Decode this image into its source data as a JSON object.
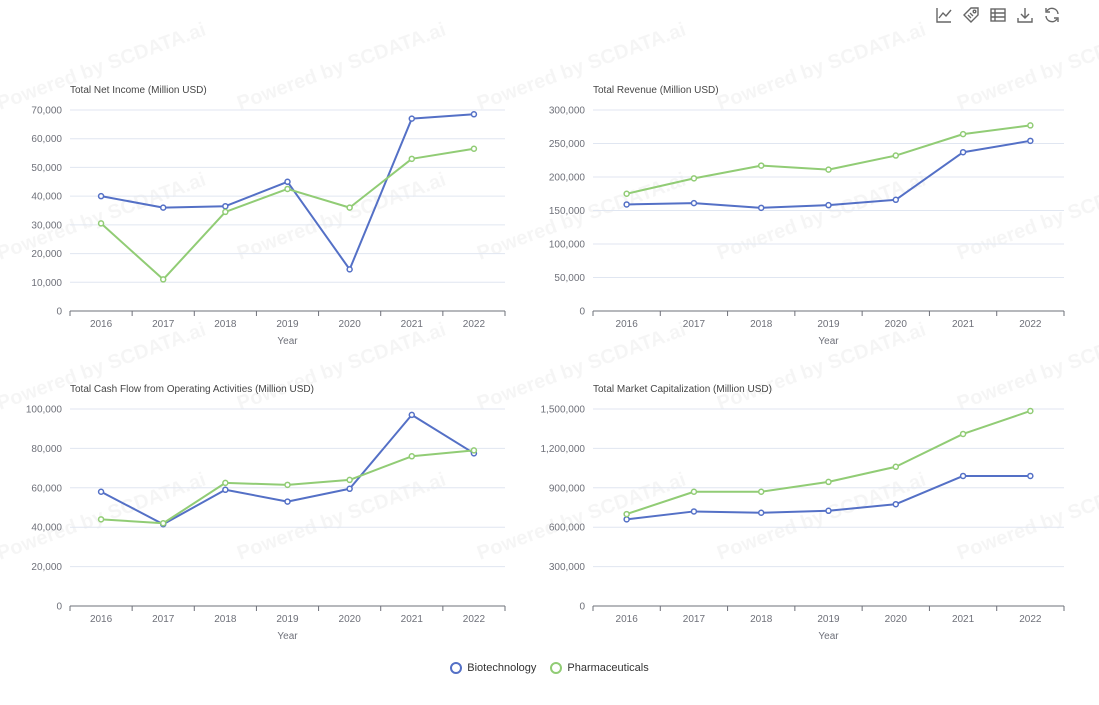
{
  "watermark_text": "Powered by SCDATA.ai",
  "toolbar": [
    {
      "name": "line-chart-icon"
    },
    {
      "name": "tag-icon"
    },
    {
      "name": "data-view-icon"
    },
    {
      "name": "download-icon"
    },
    {
      "name": "refresh-icon"
    }
  ],
  "legend": [
    {
      "name": "Biotechnology",
      "color": "#5470c6"
    },
    {
      "name": "Pharmaceuticals",
      "color": "#91cc75"
    }
  ],
  "chart_data": [
    {
      "type": "line",
      "title": "Total Net Income (Million USD)",
      "xlabel": "Year",
      "ylabel": "",
      "categories": [
        "2016",
        "2017",
        "2018",
        "2019",
        "2020",
        "2021",
        "2022"
      ],
      "ylim": [
        0,
        70000
      ],
      "yticks": [
        "0",
        "10,000",
        "20,000",
        "30,000",
        "40,000",
        "50,000",
        "60,000",
        "70,000"
      ],
      "grid": true,
      "series": [
        {
          "name": "Biotechnology",
          "color": "#5470c6",
          "values": [
            40000,
            36000,
            36500,
            45000,
            14500,
            67000,
            68500
          ]
        },
        {
          "name": "Pharmaceuticals",
          "color": "#91cc75",
          "values": [
            30500,
            11000,
            34500,
            42500,
            36000,
            53000,
            56500
          ]
        }
      ]
    },
    {
      "type": "line",
      "title": "Total Revenue (Million USD)",
      "xlabel": "Year",
      "ylabel": "",
      "categories": [
        "2016",
        "2017",
        "2018",
        "2019",
        "2020",
        "2021",
        "2022"
      ],
      "ylim": [
        0,
        300000
      ],
      "yticks": [
        "0",
        "50,000",
        "100,000",
        "150,000",
        "200,000",
        "250,000",
        "300,000"
      ],
      "grid": true,
      "series": [
        {
          "name": "Biotechnology",
          "color": "#5470c6",
          "values": [
            159000,
            161000,
            154000,
            158000,
            166000,
            237000,
            254000
          ]
        },
        {
          "name": "Pharmaceuticals",
          "color": "#91cc75",
          "values": [
            175000,
            198000,
            217000,
            211000,
            232000,
            264000,
            277000
          ]
        }
      ]
    },
    {
      "type": "line",
      "title": "Total Cash Flow from Operating Activities (Million USD)",
      "xlabel": "Year",
      "ylabel": "",
      "categories": [
        "2016",
        "2017",
        "2018",
        "2019",
        "2020",
        "2021",
        "2022"
      ],
      "ylim": [
        0,
        100000
      ],
      "yticks": [
        "0",
        "20,000",
        "40,000",
        "60,000",
        "80,000",
        "100,000"
      ],
      "grid": true,
      "series": [
        {
          "name": "Biotechnology",
          "color": "#5470c6",
          "values": [
            58000,
            41500,
            59000,
            53000,
            59500,
            97000,
            77500
          ]
        },
        {
          "name": "Pharmaceuticals",
          "color": "#91cc75",
          "values": [
            44000,
            42000,
            62500,
            61500,
            64000,
            76000,
            79000
          ]
        }
      ]
    },
    {
      "type": "line",
      "title": "Total Market Capitalization (Million USD)",
      "xlabel": "Year",
      "ylabel": "",
      "categories": [
        "2016",
        "2017",
        "2018",
        "2019",
        "2020",
        "2021",
        "2022"
      ],
      "ylim": [
        0,
        1500000
      ],
      "yticks": [
        "0",
        "300,000",
        "600,000",
        "900,000",
        "1,200,000",
        "1,500,000"
      ],
      "grid": true,
      "series": [
        {
          "name": "Biotechnology",
          "color": "#5470c6",
          "values": [
            660000,
            720000,
            710000,
            725000,
            775000,
            990000,
            990000
          ]
        },
        {
          "name": "Pharmaceuticals",
          "color": "#91cc75",
          "values": [
            700000,
            870000,
            870000,
            945000,
            1060000,
            1310000,
            1485000
          ]
        }
      ]
    }
  ]
}
